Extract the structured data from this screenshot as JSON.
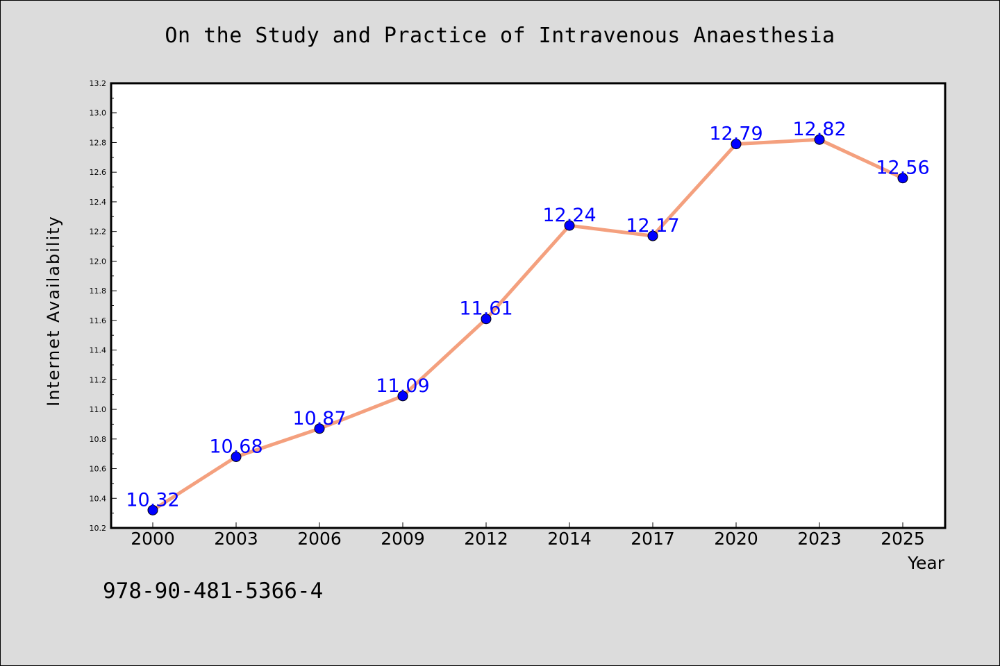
{
  "page": {
    "isbn": "978-90-481-5366-4"
  },
  "chart_data": {
    "type": "line",
    "title": "On the Study and Practice of Intravenous Anaesthesia",
    "xlabel": "Year",
    "ylabel": "Internet Availability",
    "categories": [
      "2000",
      "2003",
      "2006",
      "2009",
      "2012",
      "2014",
      "2017",
      "2020",
      "2023",
      "2025"
    ],
    "values": [
      10.32,
      10.68,
      10.87,
      11.09,
      11.61,
      12.24,
      12.17,
      12.79,
      12.82,
      12.56
    ],
    "value_labels": [
      "10.32",
      "10.68",
      "10.87",
      "11.09",
      "11.61",
      "12.24",
      "12.17",
      "12.79",
      "12.82",
      "12.56"
    ],
    "ylim": [
      10.2,
      13.2
    ],
    "yticks": [
      "10.2",
      "10.4",
      "10.6",
      "10.8",
      "11.0",
      "11.2",
      "11.4",
      "11.6",
      "11.8",
      "12.0",
      "12.2",
      "12.4",
      "12.6",
      "12.8",
      "13.0",
      "13.2"
    ],
    "grid": false,
    "line_color": "#f4a07e",
    "marker_color": "#0000ff",
    "label_color": "#0000ff"
  }
}
